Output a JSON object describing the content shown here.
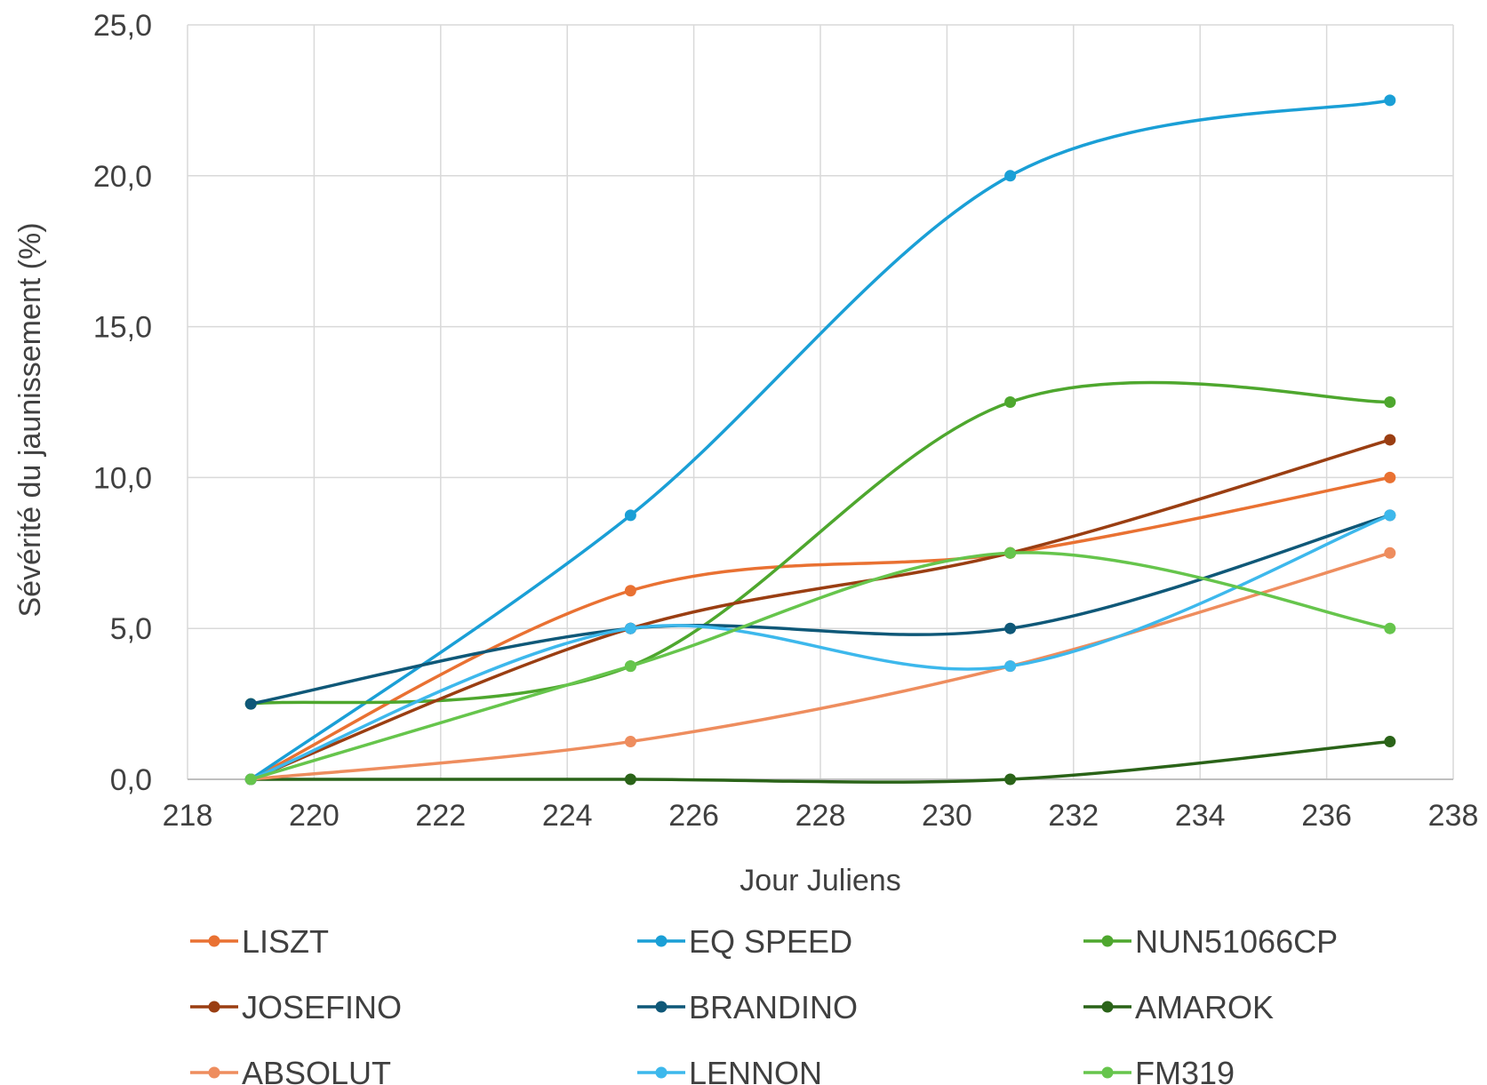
{
  "chart_data": {
    "type": "line",
    "title": "",
    "xlabel": "Jour Juliens",
    "ylabel": "Sévérité du jaunissement (%)",
    "xlim": [
      218,
      238
    ],
    "ylim": [
      0,
      25
    ],
    "x_ticks": [
      218,
      220,
      222,
      224,
      226,
      228,
      230,
      232,
      234,
      236,
      238
    ],
    "y_ticks": [
      0,
      5,
      10,
      15,
      20,
      25
    ],
    "x_tick_labels": [
      "218",
      "220",
      "222",
      "224",
      "226",
      "228",
      "230",
      "232",
      "234",
      "236",
      "238"
    ],
    "y_tick_labels": [
      "0,0",
      "5,0",
      "10,0",
      "15,0",
      "20,0",
      "25,0"
    ],
    "grid": true,
    "smooth": true,
    "legend_position": "bottom",
    "x": [
      219,
      225,
      231,
      237
    ],
    "series": [
      {
        "name": "LISZT",
        "color": "#E97132",
        "values": [
          0,
          6.25,
          7.5,
          10
        ]
      },
      {
        "name": "EQ SPEED",
        "color": "#1A9FD6",
        "values": [
          0,
          8.75,
          20,
          22.5
        ]
      },
      {
        "name": "NUN51066CP",
        "color": "#4EA72E",
        "values": [
          2.5,
          3.75,
          12.5,
          12.5
        ]
      },
      {
        "name": "JOSEFINO",
        "color": "#9A3E12",
        "values": [
          0,
          5,
          7.5,
          11.25
        ]
      },
      {
        "name": "BRANDINO",
        "color": "#0F5878",
        "values": [
          2.5,
          5,
          5,
          8.75
        ]
      },
      {
        "name": "AMAROK",
        "color": "#2A6318",
        "values": [
          0,
          0,
          0,
          1.25
        ]
      },
      {
        "name": "ABSOLUT",
        "color": "#EE8D5E",
        "values": [
          0,
          1.25,
          3.75,
          7.5
        ]
      },
      {
        "name": "LENNON",
        "color": "#3DB8EC",
        "values": [
          0,
          5,
          3.75,
          8.75
        ]
      },
      {
        "name": "FM319",
        "color": "#66C54C",
        "values": [
          0,
          3.75,
          7.5,
          5
        ]
      }
    ]
  }
}
